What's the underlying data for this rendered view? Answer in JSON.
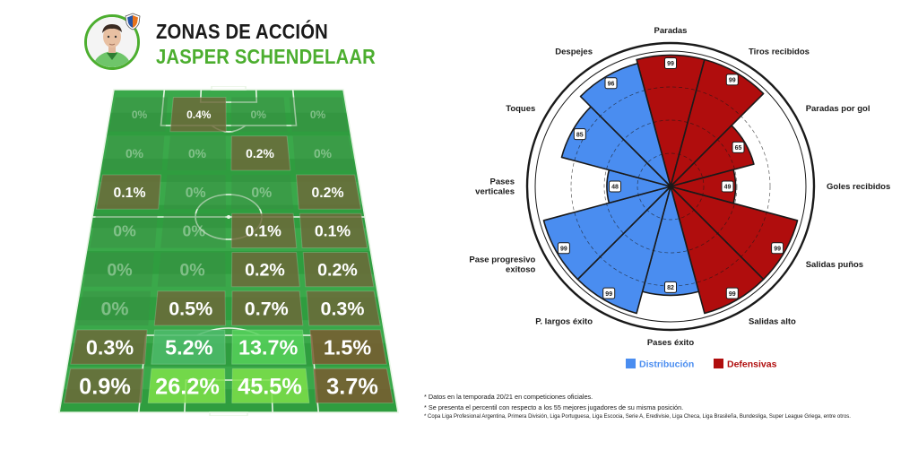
{
  "header": {
    "title": "ZONAS DE ACCIÓN",
    "player_name": "JASPER SCHENDELAAR"
  },
  "colors": {
    "accent_green": "#4cae2f",
    "distribution_blue": "#4a8df0",
    "defensive_red": "#b00d0d",
    "pitch_green": "#2f9d3f"
  },
  "pitch": {
    "rows": [
      [
        "0%",
        "0.4%",
        "0%",
        "0%"
      ],
      [
        "0%",
        "0%",
        "0.2%",
        "0%"
      ],
      [
        "0.1%",
        "0%",
        "0%",
        "0.2%"
      ],
      [
        "0%",
        "0%",
        "0.1%",
        "0.1%"
      ],
      [
        "0%",
        "0%",
        "0.2%",
        "0.2%"
      ],
      [
        "0%",
        "0.5%",
        "0.7%",
        "0.3%"
      ],
      [
        "0.3%",
        "5.2%",
        "13.7%",
        "1.5%"
      ],
      [
        "0.9%",
        "26.2%",
        "45.5%",
        "3.7%"
      ]
    ]
  },
  "chart_data": {
    "type": "polar-bar",
    "title": "",
    "scale": [
      0,
      100
    ],
    "categories": [
      "Paradas",
      "Tiros recibidos",
      "Paradas por gol",
      "Goles recibidos",
      "Salidas puños",
      "Salidas alto",
      "Pases éxito",
      "P. largos éxito",
      "Pase progresivo exitoso",
      "Pases verticales",
      "Toques",
      "Despejes"
    ],
    "values": [
      99,
      99,
      65,
      49,
      99,
      99,
      82,
      99,
      99,
      48,
      85,
      96
    ],
    "groups": [
      "Defensivas",
      "Defensivas",
      "Defensivas",
      "Defensivas",
      "Defensivas",
      "Defensivas",
      "Distribución",
      "Distribución",
      "Distribución",
      "Distribución",
      "Distribución",
      "Distribución"
    ],
    "legend": [
      {
        "name": "Distribución",
        "color": "#4a8df0"
      },
      {
        "name": "Defensivas",
        "color": "#b00d0d"
      }
    ],
    "legend_position": "bottom"
  },
  "footnotes": [
    "* Datos en la temporada 20/21 en competiciones oficiales.",
    "* Se presenta el percentil con respecto a los 55 mejores jugadores de su misma posición.",
    "* Copa Liga Profesional Argentina, Primera División, Liga Portuguesa, Liga Escocia, Serie A, Eredivisie, Liga Checa, Liga Brasileña, Bundesliga, Super League Griega, entre otros."
  ]
}
